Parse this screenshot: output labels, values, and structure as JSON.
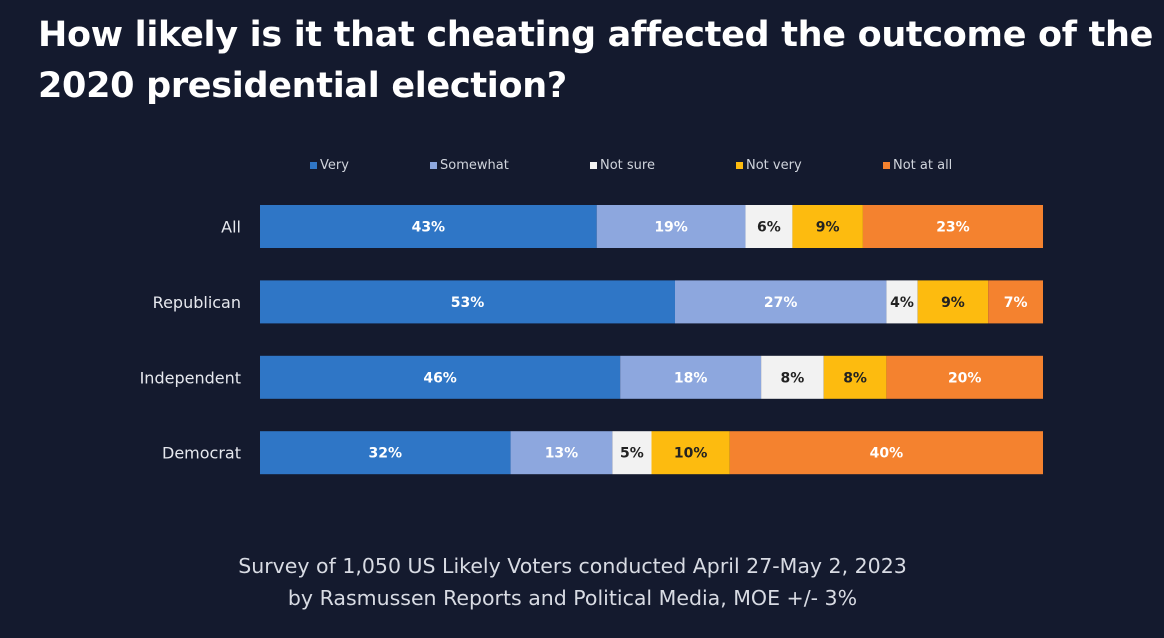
{
  "chart_data": {
    "type": "bar",
    "orientation": "horizontal",
    "stacked": true,
    "title": "How likely is it that cheating affected the outcome of the 2020 presidential election?",
    "categories": [
      "All",
      "Republican",
      "Independent",
      "Democrat"
    ],
    "series": [
      {
        "name": "Very",
        "color": "#2f76c6",
        "values": [
          43,
          53,
          46,
          32
        ],
        "labels": [
          "43%",
          "53%",
          "46%",
          "32%"
        ]
      },
      {
        "name": "Somewhat",
        "color": "#8da7de",
        "values": [
          19,
          27,
          18,
          13
        ],
        "labels": [
          "19%",
          "27%",
          "18%",
          "13%"
        ]
      },
      {
        "name": "Not sure",
        "color": "#f2f2f2",
        "values": [
          6,
          4,
          8,
          5
        ],
        "labels": [
          "6%",
          "4%",
          "8%",
          "5%"
        ]
      },
      {
        "name": "Not very",
        "color": "#fdbb0f",
        "values": [
          9,
          9,
          8,
          10
        ],
        "labels": [
          "9%",
          "9%",
          "8%",
          "10%"
        ]
      },
      {
        "name": "Not at all",
        "color": "#f4822f",
        "values": [
          23,
          7,
          20,
          40
        ],
        "labels": [
          "23%",
          "7%",
          "20%",
          "40%"
        ]
      }
    ],
    "legend_position": "top",
    "grid": false,
    "footnote": [
      "Survey of 1,050 US Likely Voters conducted April 27-May 2, 2023",
      "by Rasmussen Reports and Political Media, MOE +/- 3%"
    ]
  }
}
